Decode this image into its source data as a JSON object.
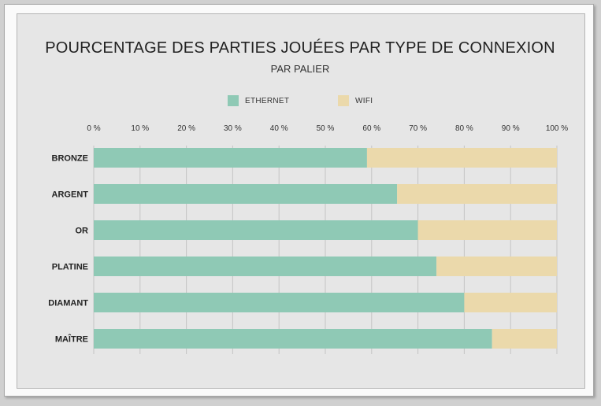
{
  "chart_data": {
    "type": "bar",
    "orientation": "horizontal",
    "stacked": true,
    "title": "POURCENTAGE DES PARTIES JOUÉES PAR TYPE DE CONNEXION",
    "subtitle": "PAR PALIER",
    "categories": [
      "BRONZE",
      "ARGENT",
      "OR",
      "PLATINE",
      "DIAMANT",
      "MAÎTRE"
    ],
    "series": [
      {
        "name": "ETHERNET",
        "color": "#8fc9b5",
        "values": [
          59,
          65.5,
          70,
          74,
          80,
          86
        ]
      },
      {
        "name": "WIFI",
        "color": "#ebd9ab",
        "values": [
          41,
          34.5,
          30,
          26,
          20,
          14
        ]
      }
    ],
    "xlim": [
      0,
      100
    ],
    "xticks": [
      "0 %",
      "10 %",
      "20 %",
      "30 %",
      "40 %",
      "50 %",
      "60 %",
      "70 %",
      "80 %",
      "90 %",
      "100 %"
    ],
    "grid": true,
    "legend_position": "top"
  }
}
